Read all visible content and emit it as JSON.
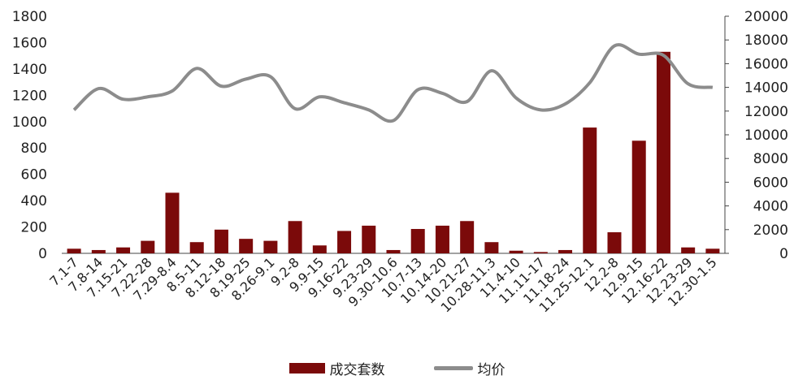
{
  "chart_data": {
    "type": "bar",
    "categories": [
      "7.1-7",
      "7.8-14",
      "7.15-21",
      "7.22-28",
      "7.29-8.4",
      "8.5-11",
      "8.12-18",
      "8.19-25",
      "8.26-9.1",
      "9.2-8",
      "9.9-15",
      "9.16-22",
      "9.23-29",
      "9.30-10.6",
      "10.7-13",
      "10.14-20",
      "10.21-27",
      "10.28-11.3",
      "11.4-10",
      "11.11-17",
      "11.18-24",
      "11.25-12.1",
      "12.2-8",
      "12.9-15",
      "12.16-22",
      "12.23-29",
      "12.30-1.5"
    ],
    "series": [
      {
        "name": "成交套数",
        "type": "bar",
        "axis": "left",
        "color": "#7b0a0a",
        "values": [
          35,
          25,
          45,
          95,
          460,
          85,
          180,
          110,
          95,
          245,
          60,
          170,
          210,
          25,
          185,
          210,
          245,
          85,
          20,
          10,
          25,
          955,
          160,
          855,
          1530,
          45,
          35
        ]
      },
      {
        "name": "均价",
        "type": "line",
        "axis": "right",
        "color": "#8c8c8c",
        "values": [
          12100,
          13900,
          13000,
          13200,
          13700,
          15600,
          14100,
          14700,
          14900,
          12200,
          13200,
          12700,
          12100,
          11200,
          13800,
          13500,
          12800,
          15400,
          13100,
          12100,
          12600,
          14400,
          17500,
          16800,
          16700,
          14300,
          14000
        ]
      }
    ],
    "y_left": {
      "ylim": [
        0,
        1800
      ],
      "ticks": [
        0,
        200,
        400,
        600,
        800,
        1000,
        1200,
        1400,
        1600,
        1800
      ]
    },
    "y_right": {
      "ylim": [
        0,
        20000
      ],
      "ticks": [
        0,
        2000,
        4000,
        6000,
        8000,
        10000,
        12000,
        14000,
        16000,
        18000,
        20000
      ]
    },
    "legend_position": "bottom",
    "grid": false
  }
}
